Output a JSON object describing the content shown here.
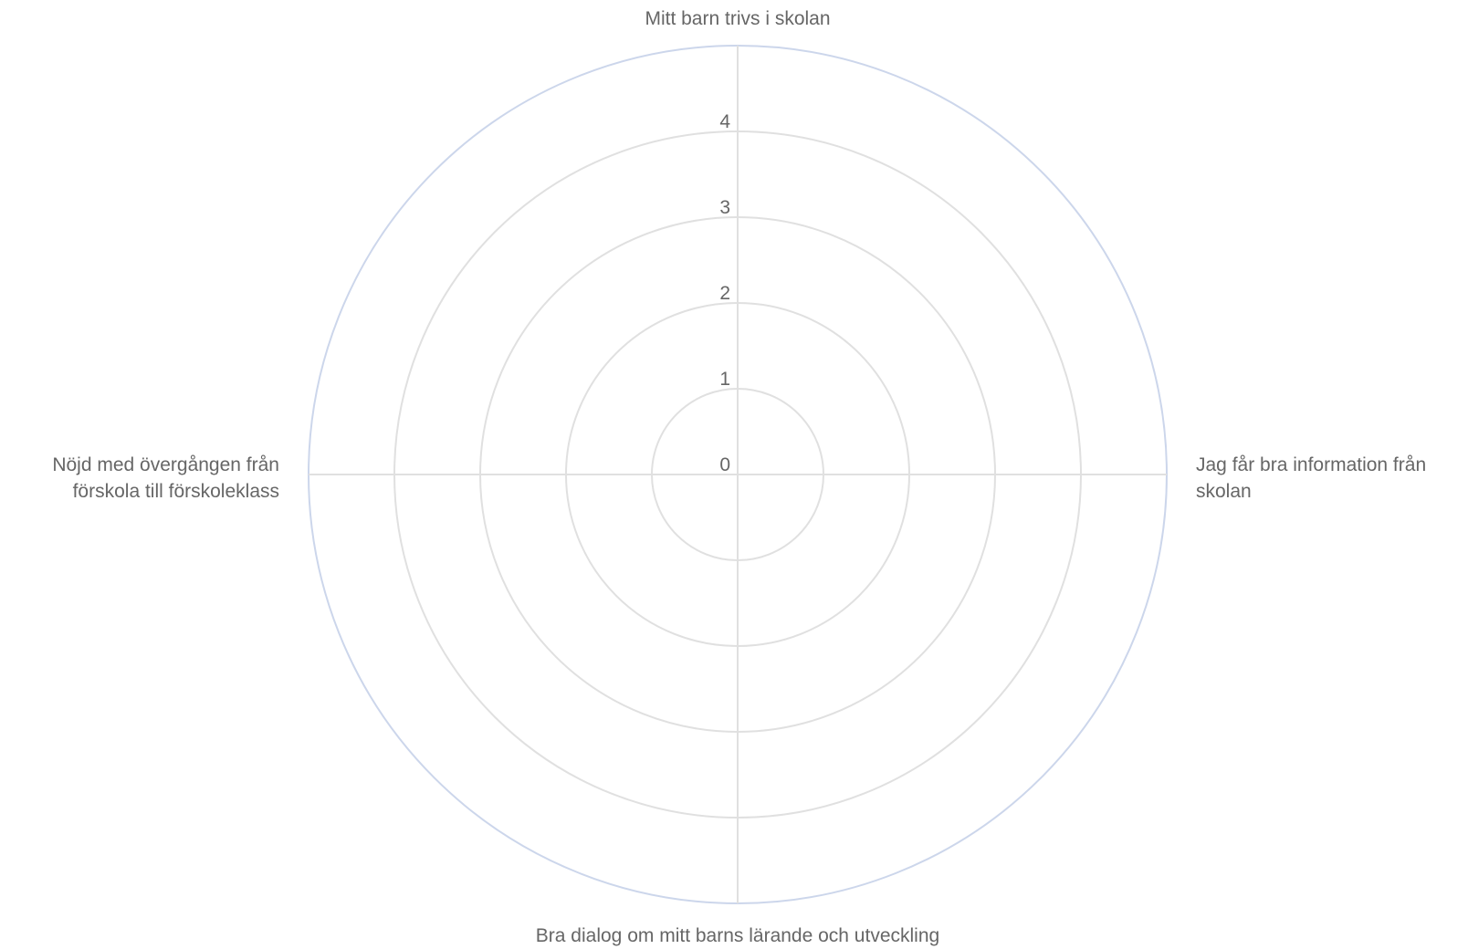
{
  "chart_data": {
    "type": "radar",
    "axes": [
      [
        "Mitt barn trivs i skolan"
      ],
      [
        "Jag får bra information från",
        "skolan"
      ],
      [
        "Bra dialog om mitt barns lärande och utveckling"
      ],
      [
        "Nöjd med övergången från",
        "förskola till förskoleklass"
      ]
    ],
    "ticks": [
      "0",
      "1",
      "2",
      "3",
      "4"
    ],
    "rlim": [
      0,
      5
    ],
    "series": [],
    "grid": true,
    "colors": {
      "grid": "#e0e0e0",
      "outer_ring": "#ccd6eb",
      "text": "#666666"
    }
  }
}
